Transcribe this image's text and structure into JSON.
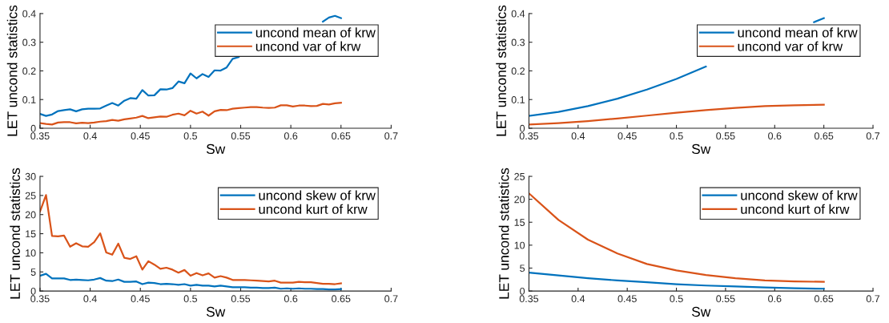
{
  "chart_data": [
    {
      "type": "line",
      "xlabel": "Sw",
      "ylabel": "LET uncond statistics",
      "xlim": [
        0.35,
        0.7
      ],
      "xticks": [
        0.35,
        0.4,
        0.45,
        0.5,
        0.55,
        0.6,
        0.65,
        0.7
      ],
      "ylim": [
        0,
        0.4
      ],
      "yticks": [
        0,
        0.1,
        0.2,
        0.3,
        0.4
      ],
      "legend": "top right",
      "grid": false,
      "x": [
        0.35,
        0.356,
        0.362,
        0.368,
        0.374,
        0.38,
        0.386,
        0.392,
        0.398,
        0.404,
        0.41,
        0.416,
        0.422,
        0.428,
        0.434,
        0.44,
        0.446,
        0.452,
        0.458,
        0.464,
        0.47,
        0.476,
        0.482,
        0.488,
        0.494,
        0.5,
        0.506,
        0.512,
        0.518,
        0.524,
        0.53,
        0.536,
        0.542,
        0.548,
        0.554,
        0.56,
        0.566,
        0.572,
        0.578,
        0.584,
        0.59,
        0.596,
        0.602,
        0.608,
        0.614,
        0.62,
        0.626,
        0.632,
        0.638,
        0.644,
        0.65
      ],
      "series": [
        {
          "name": "uncond mean of krw",
          "color": "#0072bd",
          "values": [
            0.05,
            0.043,
            0.048,
            0.06,
            0.063,
            0.066,
            0.059,
            0.066,
            0.068,
            0.068,
            0.069,
            0.079,
            0.088,
            0.079,
            0.096,
            0.105,
            0.103,
            0.133,
            0.114,
            0.115,
            0.136,
            0.135,
            0.14,
            0.163,
            0.157,
            0.191,
            0.174,
            0.189,
            0.179,
            0.202,
            0.201,
            0.212,
            0.242,
            0.248,
            null,
            null,
            null,
            null,
            null,
            null,
            null,
            null,
            null,
            null,
            null,
            null,
            null,
            0.372,
            0.386,
            0.392,
            0.384
          ]
        },
        {
          "name": "uncond var of krw",
          "color": "#d95319",
          "values": [
            0.018,
            0.015,
            0.013,
            0.02,
            0.021,
            0.021,
            0.017,
            0.019,
            0.018,
            0.02,
            0.023,
            0.025,
            0.029,
            0.026,
            0.031,
            0.034,
            0.037,
            0.043,
            0.035,
            0.038,
            0.041,
            0.04,
            0.047,
            0.051,
            0.045,
            0.061,
            0.051,
            0.058,
            0.044,
            0.059,
            0.064,
            0.063,
            0.068,
            0.07,
            0.072,
            0.074,
            0.074,
            0.072,
            0.071,
            0.072,
            0.08,
            0.08,
            0.076,
            0.079,
            0.079,
            0.077,
            0.078,
            0.085,
            0.083,
            0.087,
            0.089
          ]
        }
      ]
    },
    {
      "type": "line",
      "xlabel": "Sw",
      "ylabel": "LET uncond statistics",
      "xlim": [
        0.35,
        0.7
      ],
      "xticks": [
        0.35,
        0.4,
        0.45,
        0.5,
        0.55,
        0.6,
        0.65,
        0.7
      ],
      "ylim": [
        0,
        0.4
      ],
      "yticks": [
        0,
        0.1,
        0.2,
        0.3,
        0.4
      ],
      "legend": "top right",
      "grid": false,
      "x": [
        0.35,
        0.38,
        0.41,
        0.44,
        0.47,
        0.5,
        0.53,
        0.56,
        0.59,
        0.62,
        0.65
      ],
      "series": [
        {
          "name": "uncond mean of krw",
          "color": "#0072bd",
          "x": [
            0.35,
            0.38,
            0.41,
            0.44,
            0.47,
            0.5,
            0.53,
            0.56,
            0.59,
            0.62,
            0.64,
            0.65
          ],
          "values": [
            0.043,
            0.057,
            0.077,
            0.103,
            0.135,
            0.172,
            0.215,
            null,
            null,
            null,
            0.37,
            0.384
          ]
        },
        {
          "name": "uncond var of krw",
          "color": "#d95319",
          "values": [
            0.013,
            0.018,
            0.025,
            0.034,
            0.044,
            0.054,
            0.063,
            0.071,
            0.077,
            0.08,
            0.082
          ]
        }
      ]
    },
    {
      "type": "line",
      "xlabel": "Sw",
      "ylabel": "LET uncond statistics",
      "xlim": [
        0.35,
        0.7
      ],
      "xticks": [
        0.35,
        0.4,
        0.45,
        0.5,
        0.55,
        0.6,
        0.65,
        0.7
      ],
      "ylim": [
        0,
        30
      ],
      "yticks": [
        0,
        5,
        10,
        15,
        20,
        25,
        30
      ],
      "legend": "top right",
      "grid": false,
      "x": [
        0.35,
        0.356,
        0.362,
        0.368,
        0.374,
        0.38,
        0.386,
        0.392,
        0.398,
        0.404,
        0.41,
        0.416,
        0.422,
        0.428,
        0.434,
        0.44,
        0.446,
        0.452,
        0.458,
        0.464,
        0.47,
        0.476,
        0.482,
        0.488,
        0.494,
        0.5,
        0.506,
        0.512,
        0.518,
        0.524,
        0.53,
        0.536,
        0.542,
        0.548,
        0.554,
        0.56,
        0.566,
        0.572,
        0.578,
        0.584,
        0.59,
        0.596,
        0.602,
        0.608,
        0.614,
        0.62,
        0.626,
        0.632,
        0.638,
        0.644,
        0.65
      ],
      "series": [
        {
          "name": "uncond skew of krw",
          "color": "#0072bd",
          "values": [
            4.0,
            4.5,
            3.3,
            3.3,
            3.3,
            2.9,
            3.0,
            2.9,
            2.8,
            3.0,
            3.4,
            2.7,
            2.6,
            3.0,
            2.4,
            2.4,
            2.5,
            1.8,
            2.2,
            2.1,
            1.8,
            1.9,
            1.8,
            1.6,
            1.8,
            1.4,
            1.6,
            1.4,
            1.4,
            1.2,
            1.4,
            1.2,
            1.0,
            1.0,
            1.0,
            0.9,
            0.9,
            0.8,
            0.8,
            0.9,
            0.6,
            0.7,
            0.6,
            0.7,
            0.6,
            0.6,
            0.5,
            0.5,
            0.4,
            0.4,
            0.5
          ]
        },
        {
          "name": "uncond kurt of krw",
          "color": "#d95319",
          "values": [
            20.8,
            25.1,
            14.4,
            14.3,
            14.5,
            11.6,
            12.5,
            11.7,
            11.6,
            12.8,
            15.1,
            10.1,
            9.5,
            12.4,
            8.7,
            8.4,
            9.1,
            5.6,
            7.8,
            6.9,
            5.8,
            6.1,
            5.6,
            4.8,
            5.5,
            4.0,
            4.7,
            4.1,
            4.6,
            3.5,
            3.9,
            3.5,
            2.9,
            2.9,
            2.9,
            2.8,
            2.7,
            2.6,
            2.5,
            2.7,
            2.2,
            2.2,
            2.2,
            2.4,
            2.3,
            2.3,
            2.1,
            1.9,
            1.9,
            1.8,
            2.0
          ]
        }
      ]
    },
    {
      "type": "line",
      "xlabel": "Sw",
      "ylabel": "LET uncond statistics",
      "xlim": [
        0.35,
        0.7
      ],
      "xticks": [
        0.35,
        0.4,
        0.45,
        0.5,
        0.55,
        0.6,
        0.65,
        0.7
      ],
      "ylim": [
        0,
        25
      ],
      "yticks": [
        0,
        5,
        10,
        15,
        20,
        25
      ],
      "legend": "top right",
      "grid": false,
      "x": [
        0.35,
        0.38,
        0.41,
        0.44,
        0.47,
        0.5,
        0.53,
        0.56,
        0.59,
        0.62,
        0.65
      ],
      "series": [
        {
          "name": "uncond skew of krw",
          "color": "#0072bd",
          "values": [
            4.0,
            3.4,
            2.8,
            2.3,
            1.9,
            1.5,
            1.2,
            1.0,
            0.8,
            0.6,
            0.5
          ]
        },
        {
          "name": "uncond kurt of krw",
          "color": "#d95319",
          "values": [
            21.3,
            15.5,
            11.2,
            8.2,
            5.9,
            4.5,
            3.5,
            2.8,
            2.3,
            2.1,
            2.0
          ]
        }
      ]
    }
  ]
}
